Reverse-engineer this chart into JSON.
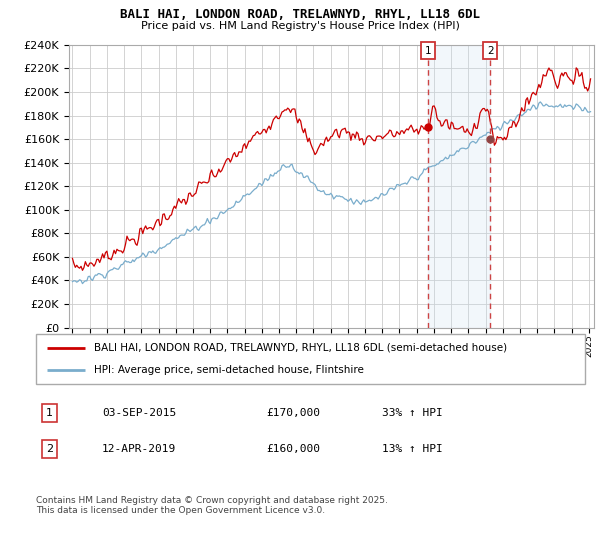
{
  "title": "BALI HAI, LONDON ROAD, TRELAWNYD, RHYL, LL18 6DL",
  "subtitle": "Price paid vs. HM Land Registry's House Price Index (HPI)",
  "ylim": [
    0,
    240000
  ],
  "yticks": [
    0,
    20000,
    40000,
    60000,
    80000,
    100000,
    120000,
    140000,
    160000,
    180000,
    200000,
    220000,
    240000
  ],
  "xlim_start": 1994.8,
  "xlim_end": 2025.3,
  "red_color": "#cc0000",
  "blue_color": "#7aadcc",
  "marker1_date": 2015.67,
  "marker2_date": 2019.28,
  "marker1_price": 170000,
  "marker2_price": 160000,
  "marker1_label": "1",
  "marker2_label": "2",
  "shade_color": "#cce0f0",
  "legend_entry1": "BALI HAI, LONDON ROAD, TRELAWNYD, RHYL, LL18 6DL (semi-detached house)",
  "legend_entry2": "HPI: Average price, semi-detached house, Flintshire",
  "table_row1": [
    "1",
    "03-SEP-2015",
    "£170,000",
    "33% ↑ HPI"
  ],
  "table_row2": [
    "2",
    "12-APR-2019",
    "£160,000",
    "13% ↑ HPI"
  ],
  "footer": "Contains HM Land Registry data © Crown copyright and database right 2025.\nThis data is licensed under the Open Government Licence v3.0.",
  "background_color": "#ffffff",
  "grid_color": "#cccccc",
  "dot_color": "#cc0000"
}
